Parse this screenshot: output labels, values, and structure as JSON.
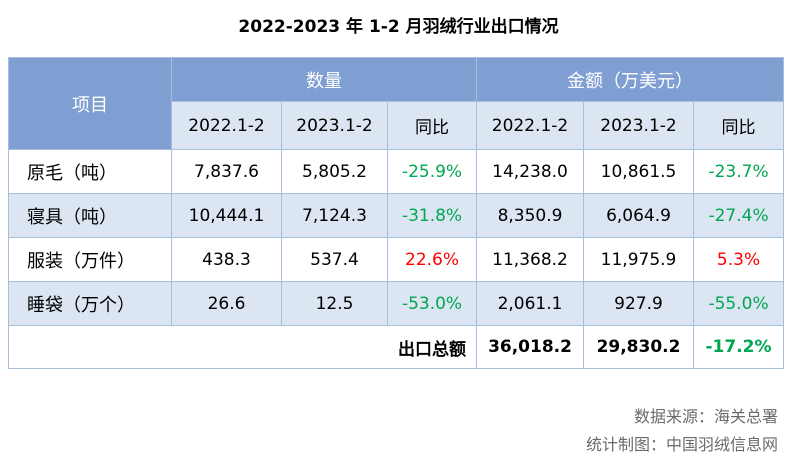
{
  "title": "2022-2023 年 1-2 月羽绒行业出口情况",
  "table": {
    "header": {
      "item": "项目",
      "groups": [
        "数量",
        "金额（万美元）"
      ],
      "columns": [
        "2022.1-2",
        "2023.1-2",
        "同比",
        "2022.1-2",
        "2023.1-2",
        "同比"
      ]
    },
    "rows": [
      [
        "原毛（吨）",
        "7,837.6",
        "5,805.2",
        "-25.9%",
        "14,238.0",
        "10,861.5",
        "-23.7%"
      ],
      [
        "寝具（吨）",
        "10,444.1",
        "7,124.3",
        "-31.8%",
        "8,350.9",
        "6,064.9",
        "-27.4%"
      ],
      [
        "服装（万件）",
        "438.3",
        "537.4",
        "22.6%",
        "11,368.2",
        "11,975.9",
        "5.3%"
      ],
      [
        "睡袋（万个）",
        "26.6",
        "12.5",
        "-53.0%",
        "2,061.1",
        "927.9",
        "-55.0%"
      ]
    ],
    "total": {
      "label": "出口总额",
      "values": [
        "36,018.2",
        "29,830.2",
        "-17.2%"
      ]
    }
  },
  "footer": [
    "数据来源：海关总署",
    "统计制图：中国羽绒信息网"
  ]
}
